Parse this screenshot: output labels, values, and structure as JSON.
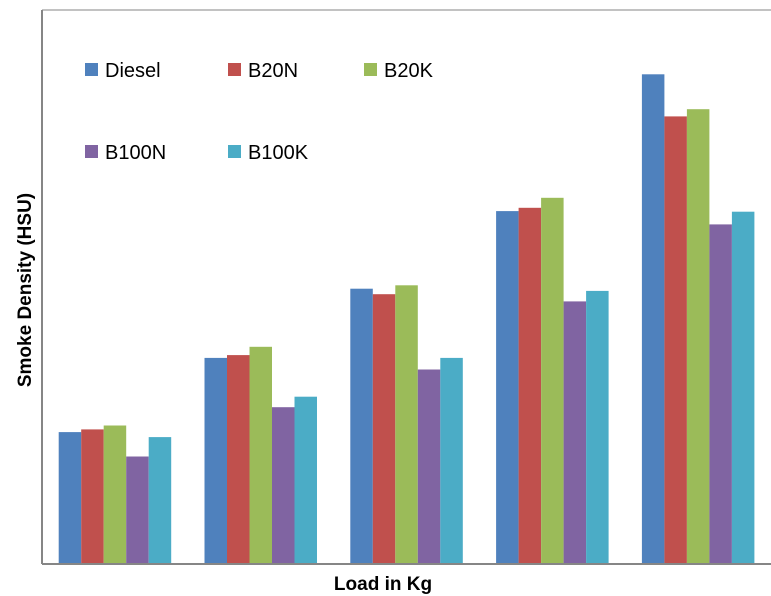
{
  "chart_data": {
    "type": "bar",
    "title": "",
    "xlabel": "Load in Kg",
    "ylabel": "Smoke Density (HSU)",
    "categories": [
      "",
      "",
      "",
      "",
      ""
    ],
    "ylim": [
      0,
      100
    ],
    "grid": false,
    "legend": "top-left",
    "series": [
      {
        "name": "Diesel",
        "color": "#4F81BD",
        "values": [
          23.8,
          37.2,
          49.7,
          63.7,
          88.4
        ]
      },
      {
        "name": "B20N",
        "color": "#C0504D",
        "values": [
          24.3,
          37.7,
          48.7,
          64.3,
          80.8
        ]
      },
      {
        "name": "B20K",
        "color": "#9BBB59",
        "values": [
          25.0,
          39.2,
          50.3,
          66.1,
          82.1
        ]
      },
      {
        "name": "B100N",
        "color": "#8064A2",
        "values": [
          19.4,
          28.3,
          35.1,
          47.4,
          61.3
        ]
      },
      {
        "name": "B100K",
        "color": "#4BACC6",
        "values": [
          22.9,
          30.2,
          37.2,
          49.3,
          63.6
        ]
      }
    ]
  }
}
